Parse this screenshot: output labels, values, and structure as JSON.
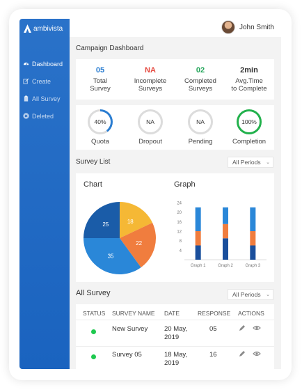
{
  "app": {
    "logo_text": "ambivista"
  },
  "user": {
    "name": "John Smith"
  },
  "sidebar": {
    "items": [
      {
        "label": "Dashboard",
        "icon": "dashboard-icon",
        "active": true
      },
      {
        "label": "Create",
        "icon": "edit-icon",
        "active": false
      },
      {
        "label": "All Survey",
        "icon": "clipboard-icon",
        "active": false
      },
      {
        "label": "Deleted",
        "icon": "delete-circle-icon",
        "active": false
      }
    ]
  },
  "page": {
    "title": "Campaign Dashboard"
  },
  "stats": [
    {
      "value": "05",
      "label_1": "Total",
      "label_2": "Survey",
      "color": "#2a7dd1"
    },
    {
      "value": "NA",
      "label_1": "Incomplete",
      "label_2": "Surveys",
      "color": "#e5483e"
    },
    {
      "value": "02",
      "label_1": "Completed",
      "label_2": "Surveys",
      "color": "#22a559"
    },
    {
      "value": "2min",
      "label_1": "Avg.Time",
      "label_2": "to Complete",
      "color": "#333333"
    }
  ],
  "rings": [
    {
      "text": "40%",
      "label": "Quota",
      "progress": 0.4,
      "color": "#2a7dd1"
    },
    {
      "text": "NA",
      "label": "Dropout",
      "progress": 0,
      "color": "#dcdcdc"
    },
    {
      "text": "NA",
      "label": "Pending",
      "progress": 0,
      "color": "#dcdcdc"
    },
    {
      "text": "100%",
      "label": "Completion",
      "progress": 1,
      "color": "#22b14c"
    }
  ],
  "survey_list": {
    "title": "Survey List",
    "filter": "All Periods"
  },
  "charts": {
    "chart_title": "Chart",
    "graph_title": "Graph"
  },
  "chart_data": [
    {
      "type": "pie",
      "values": [
        25,
        18,
        22,
        35
      ],
      "labels": [
        "25",
        "18",
        "22",
        "35"
      ],
      "colors": [
        "#1a5ca8",
        "#f5b835",
        "#f07d3e",
        "#2a87d8"
      ]
    },
    {
      "type": "bar",
      "categories": [
        "Graph 1",
        "Graph 2",
        "Graph 3"
      ],
      "ylim": [
        0,
        24
      ],
      "yticks": [
        4,
        8,
        12,
        16,
        20,
        24
      ],
      "series": [
        {
          "values": [
            6,
            9,
            6
          ],
          "color": "#1a4f9c"
        },
        {
          "values": [
            6,
            6,
            6
          ],
          "color": "#f07d3e"
        },
        {
          "values": [
            10,
            7,
            10
          ],
          "color": "#2a87d8"
        }
      ]
    }
  ],
  "all_survey": {
    "title": "All Survey",
    "filter": "All Periods",
    "columns": [
      "STATUS",
      "SURVEY NAME",
      "DATE",
      "RESPONSE",
      "ACTIONS"
    ],
    "rows": [
      {
        "name": "New Survey",
        "date_1": "20 May,",
        "date_2": "2019",
        "response": "05"
      },
      {
        "name": "Survey 05",
        "date_1": "18 May,",
        "date_2": "2019",
        "response": "16"
      }
    ]
  }
}
